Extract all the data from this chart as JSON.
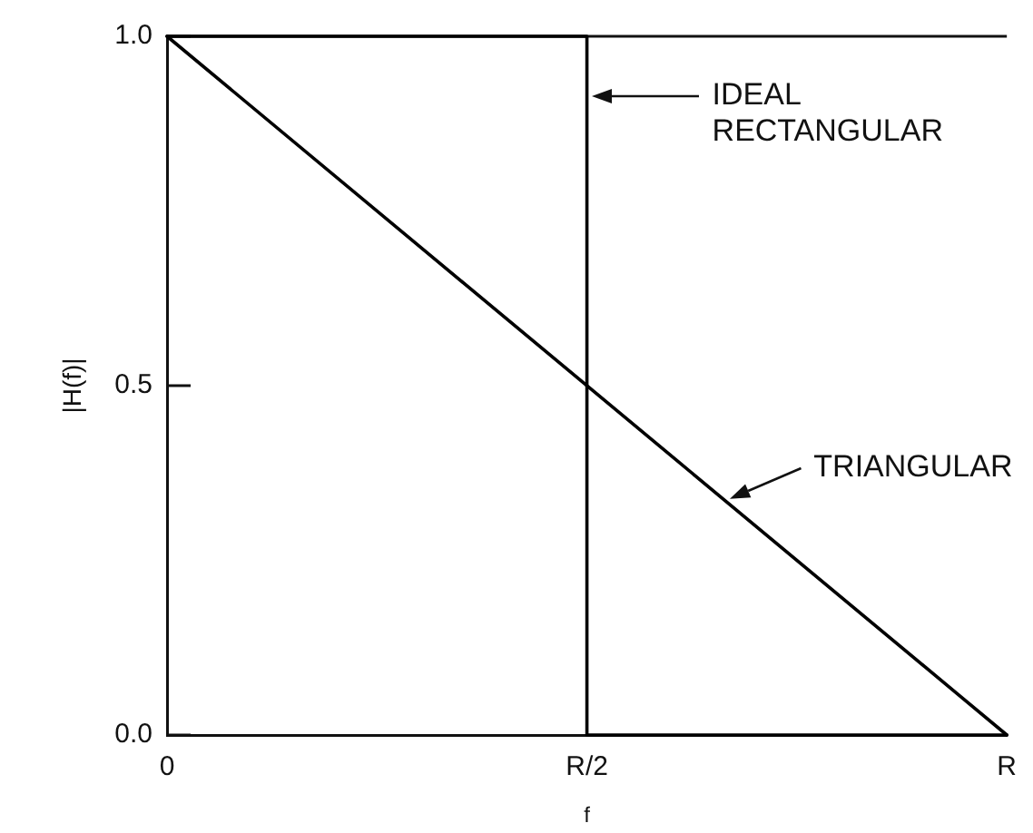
{
  "chart_data": {
    "type": "line",
    "xlabel": "f",
    "ylabel": "|H(f)|",
    "categories": [
      "0",
      "R/2",
      "R"
    ],
    "ylim": [
      0,
      1
    ],
    "yticks": [
      {
        "value": 0,
        "label": "0.0"
      },
      0.5,
      {
        "value": 1,
        "label": "1.0"
      }
    ],
    "marker": "none",
    "line_style": "solid",
    "series": [
      {
        "color": "#000000",
        "x": [
          "0",
          "R/2",
          "R/2",
          "R"
        ],
        "values": [
          1,
          1,
          0,
          0
        ]
      },
      {
        "color": "#000000",
        "x": [
          "0",
          "R"
        ],
        "values": [
          1,
          0
        ]
      }
    ],
    "annotations": [
      "IDEAL RECTANGULAR",
      "TRIANGULAR"
    ]
  }
}
